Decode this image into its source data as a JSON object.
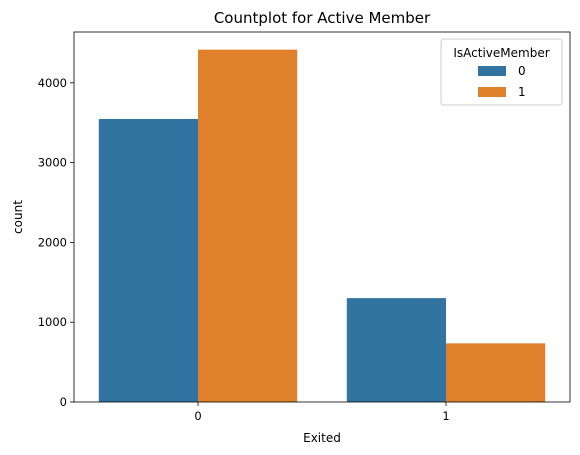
{
  "chart_data": {
    "type": "bar",
    "title": "Countplot for Active Member",
    "xlabel": "Exited",
    "ylabel": "count",
    "categories": [
      "0",
      "1"
    ],
    "series": [
      {
        "name": "0",
        "values": [
          3547,
          1302
        ],
        "color": "#3274a1"
      },
      {
        "name": "1",
        "values": [
          4416,
          735
        ],
        "color": "#e1812c"
      }
    ],
    "yticks": [
      0,
      1000,
      2000,
      3000,
      4000
    ],
    "ylim": [
      0,
      4637
    ],
    "legend": {
      "title": "IsActiveMember",
      "placement": "top-right"
    },
    "grid": false
  }
}
